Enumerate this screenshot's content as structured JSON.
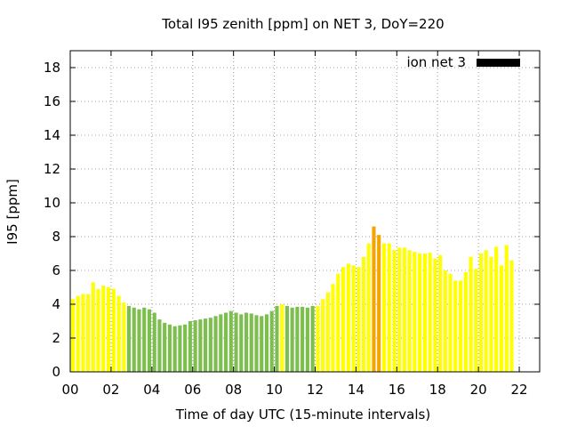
{
  "chart_data": {
    "type": "bar",
    "title": "Total I95 zenith [ppm] on NET 3, DoY=220",
    "xlabel": "Time of day UTC (15-minute intervals)",
    "ylabel": "I95 [ppm]",
    "xlim": [
      0,
      23
    ],
    "ylim": [
      0,
      19
    ],
    "x_ticks": [
      "00",
      "02",
      "04",
      "06",
      "08",
      "10",
      "12",
      "14",
      "16",
      "18",
      "20",
      "22"
    ],
    "y_ticks": [
      "0",
      "2",
      "4",
      "6",
      "8",
      "10",
      "12",
      "14",
      "16",
      "18"
    ],
    "grid": true,
    "legend": {
      "label": "ion net 3",
      "position": "top-right"
    },
    "colors": {
      "yellow": "#ffff00",
      "green": "#7cbf4e",
      "orange": "#f5a500",
      "legend_swatch": "#000000"
    },
    "interval_hours": 0.25,
    "values": [
      4.3,
      4.5,
      4.6,
      4.6,
      5.3,
      4.9,
      5.1,
      5.0,
      4.9,
      4.5,
      4.1,
      3.9,
      3.8,
      3.7,
      3.8,
      3.7,
      3.5,
      3.1,
      2.9,
      2.8,
      2.7,
      2.75,
      2.8,
      3.0,
      3.05,
      3.1,
      3.15,
      3.2,
      3.3,
      3.4,
      3.5,
      3.6,
      3.5,
      3.4,
      3.5,
      3.45,
      3.35,
      3.3,
      3.4,
      3.6,
      3.9,
      4.0,
      3.9,
      3.8,
      3.85,
      3.85,
      3.8,
      3.9,
      3.9,
      4.3,
      4.7,
      5.2,
      5.8,
      6.2,
      6.4,
      6.3,
      6.2,
      6.8,
      7.6,
      8.6,
      8.1,
      7.6,
      7.6,
      7.2,
      7.35,
      7.35,
      7.2,
      7.1,
      7.0,
      7.0,
      7.05,
      6.7,
      6.9,
      6.0,
      5.8,
      5.4,
      5.4,
      5.9,
      6.8,
      6.1,
      7.0,
      7.2,
      6.8,
      7.4,
      6.3,
      7.5,
      6.6
    ],
    "bar_colors": [
      "yellow",
      "yellow",
      "yellow",
      "yellow",
      "yellow",
      "yellow",
      "yellow",
      "yellow",
      "yellow",
      "yellow",
      "yellow",
      "green",
      "green",
      "green",
      "green",
      "green",
      "green",
      "green",
      "green",
      "green",
      "green",
      "green",
      "green",
      "green",
      "green",
      "green",
      "green",
      "green",
      "green",
      "green",
      "green",
      "green",
      "green",
      "green",
      "green",
      "green",
      "green",
      "green",
      "green",
      "green",
      "green",
      "yellow",
      "green",
      "green",
      "green",
      "green",
      "green",
      "green",
      "yellow",
      "yellow",
      "yellow",
      "yellow",
      "yellow",
      "yellow",
      "yellow",
      "yellow",
      "yellow",
      "yellow",
      "yellow",
      "orange",
      "orange",
      "yellow",
      "yellow",
      "yellow",
      "yellow",
      "yellow",
      "yellow",
      "yellow",
      "yellow",
      "yellow",
      "yellow",
      "yellow",
      "yellow",
      "yellow",
      "yellow",
      "yellow",
      "yellow",
      "yellow",
      "yellow",
      "yellow",
      "yellow",
      "yellow",
      "yellow",
      "yellow",
      "yellow",
      "yellow",
      "yellow"
    ]
  }
}
